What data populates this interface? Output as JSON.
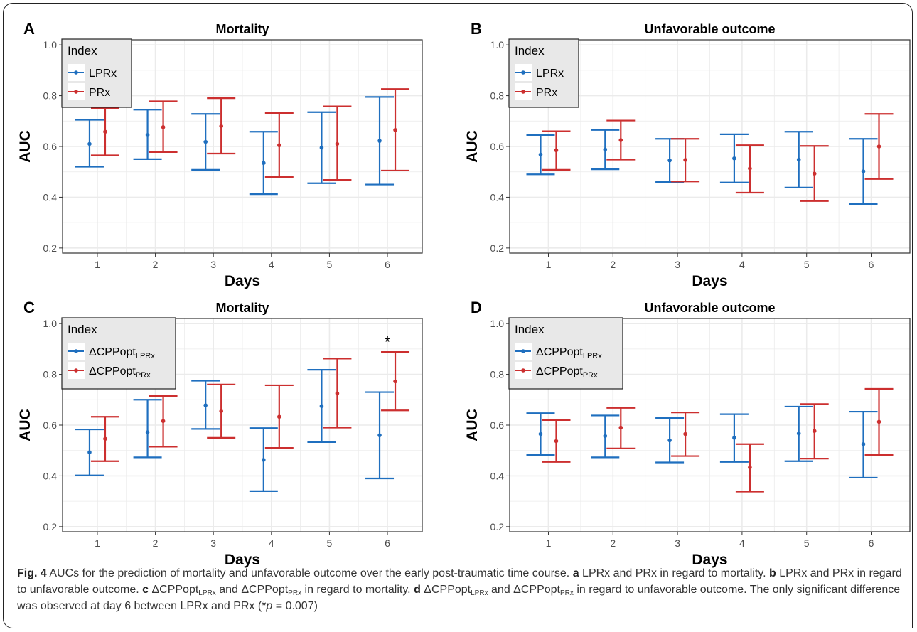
{
  "figure": {
    "caption": {
      "fig_label": "Fig. 4",
      "intro": " AUCs for the prediction of mortality and unfavorable outcome over the early post-traumatic time course. ",
      "a_letter": "a",
      "a_text": " LPRx and PRx in regard to mortality. ",
      "b_letter": "b",
      "b_text": " LPRx and PRx in regard to unfavorable outcome. ",
      "c_letter": "c",
      "c_text_1": " ΔCPPopt",
      "c_sub_1": "LPRx",
      "c_text_2": " and ΔCPPopt",
      "c_sub_2": "PRx",
      "c_text_3": " in regard to mortality. ",
      "d_letter": "d",
      "d_text_1": " ΔCPPopt",
      "d_sub_1": "LPRx",
      "d_text_2": " and ΔCPPopt",
      "d_sub_2": "PRx",
      "d_text_3": " in regard to unfavorable outcome. The only significant difference was observed at day 6 between LPRx and PRx (*",
      "d_italic_p": "p",
      "d_text_4": " = 0.007)"
    }
  },
  "colors": {
    "blue": "#1f6fbf",
    "red": "#cc2f2f",
    "legend_bg": "#e8e8e8",
    "grid": "#ebebeb"
  },
  "chart_data": [
    {
      "type": "scatter",
      "panel": "A",
      "title": "Mortality",
      "xlabel": "Days",
      "ylabel": "AUC",
      "x": [
        1,
        2,
        3,
        4,
        5,
        6
      ],
      "yticks": [
        "0.2",
        "0.4",
        "0.6",
        "0.8",
        "1.0"
      ],
      "ylim": [
        0.18,
        1.02
      ],
      "legend": {
        "title": "Index",
        "placement": "top-left"
      },
      "series": [
        {
          "name": "LPRx",
          "color": "#1f6fbf",
          "y": [
            0.61,
            0.645,
            0.618,
            0.535,
            0.595,
            0.622
          ],
          "lower": [
            0.52,
            0.55,
            0.508,
            0.412,
            0.455,
            0.45
          ],
          "upper": [
            0.705,
            0.745,
            0.728,
            0.658,
            0.735,
            0.795
          ]
        },
        {
          "name": "PRx",
          "color": "#cc2f2f",
          "y": [
            0.658,
            0.676,
            0.68,
            0.605,
            0.61,
            0.665
          ],
          "lower": [
            0.565,
            0.578,
            0.572,
            0.48,
            0.468,
            0.505
          ],
          "upper": [
            0.75,
            0.778,
            0.79,
            0.732,
            0.758,
            0.826
          ]
        }
      ]
    },
    {
      "type": "scatter",
      "panel": "B",
      "title": "Unfavorable outcome",
      "xlabel": "Days",
      "ylabel": "AUC",
      "x": [
        1,
        2,
        3,
        4,
        5,
        6
      ],
      "yticks": [
        "0.2",
        "0.4",
        "0.6",
        "0.8",
        "1.0"
      ],
      "ylim": [
        0.18,
        1.02
      ],
      "legend": {
        "title": "Index",
        "placement": "top-left"
      },
      "series": [
        {
          "name": "LPRx",
          "color": "#1f6fbf",
          "y": [
            0.568,
            0.588,
            0.545,
            0.553,
            0.548,
            0.502
          ],
          "lower": [
            0.49,
            0.51,
            0.46,
            0.458,
            0.438,
            0.373
          ],
          "upper": [
            0.645,
            0.665,
            0.63,
            0.648,
            0.658,
            0.63
          ]
        },
        {
          "name": "PRx",
          "color": "#cc2f2f",
          "y": [
            0.585,
            0.625,
            0.547,
            0.513,
            0.493,
            0.6
          ],
          "lower": [
            0.508,
            0.548,
            0.462,
            0.418,
            0.385,
            0.472
          ],
          "upper": [
            0.66,
            0.702,
            0.63,
            0.605,
            0.602,
            0.728
          ]
        }
      ]
    },
    {
      "type": "scatter",
      "panel": "C",
      "title": "Mortality",
      "xlabel": "Days",
      "ylabel": "AUC",
      "x": [
        1,
        2,
        3,
        4,
        5,
        6
      ],
      "yticks": [
        "0.2",
        "0.4",
        "0.6",
        "0.8",
        "1.0"
      ],
      "ylim": [
        0.18,
        1.02
      ],
      "legend": {
        "title": "Index",
        "placement": "top-left"
      },
      "annotation": {
        "text": "*",
        "x": 6,
        "y": 0.935
      },
      "series": [
        {
          "name": "ΔCPPopt",
          "name_sub": "LPRx",
          "color": "#1f6fbf",
          "y": [
            0.493,
            0.572,
            0.678,
            0.463,
            0.675,
            0.56
          ],
          "lower": [
            0.402,
            0.473,
            0.585,
            0.34,
            0.533,
            0.39
          ],
          "upper": [
            0.583,
            0.7,
            0.775,
            0.588,
            0.818,
            0.73
          ]
        },
        {
          "name": "ΔCPPopt",
          "name_sub": "PRx",
          "color": "#cc2f2f",
          "y": [
            0.546,
            0.616,
            0.655,
            0.633,
            0.725,
            0.772
          ],
          "lower": [
            0.458,
            0.515,
            0.55,
            0.51,
            0.59,
            0.658
          ],
          "upper": [
            0.633,
            0.715,
            0.76,
            0.757,
            0.862,
            0.888
          ]
        }
      ]
    },
    {
      "type": "scatter",
      "panel": "D",
      "title": "Unfavorable outcome",
      "xlabel": "Days",
      "ylabel": "AUC",
      "x": [
        1,
        2,
        3,
        4,
        5,
        6
      ],
      "yticks": [
        "0.2",
        "0.4",
        "0.6",
        "0.8",
        "1.0"
      ],
      "ylim": [
        0.18,
        1.02
      ],
      "legend": {
        "title": "Index",
        "placement": "top-left"
      },
      "series": [
        {
          "name": "ΔCPPopt",
          "name_sub": "LPRx",
          "color": "#1f6fbf",
          "y": [
            0.565,
            0.557,
            0.54,
            0.55,
            0.567,
            0.525
          ],
          "lower": [
            0.482,
            0.473,
            0.453,
            0.455,
            0.458,
            0.393
          ],
          "upper": [
            0.647,
            0.638,
            0.628,
            0.643,
            0.673,
            0.653
          ]
        },
        {
          "name": "ΔCPPopt",
          "name_sub": "PRx",
          "color": "#cc2f2f",
          "y": [
            0.537,
            0.59,
            0.565,
            0.433,
            0.577,
            0.613
          ],
          "lower": [
            0.455,
            0.508,
            0.478,
            0.338,
            0.468,
            0.482
          ],
          "upper": [
            0.62,
            0.668,
            0.65,
            0.525,
            0.683,
            0.743
          ]
        }
      ]
    }
  ]
}
